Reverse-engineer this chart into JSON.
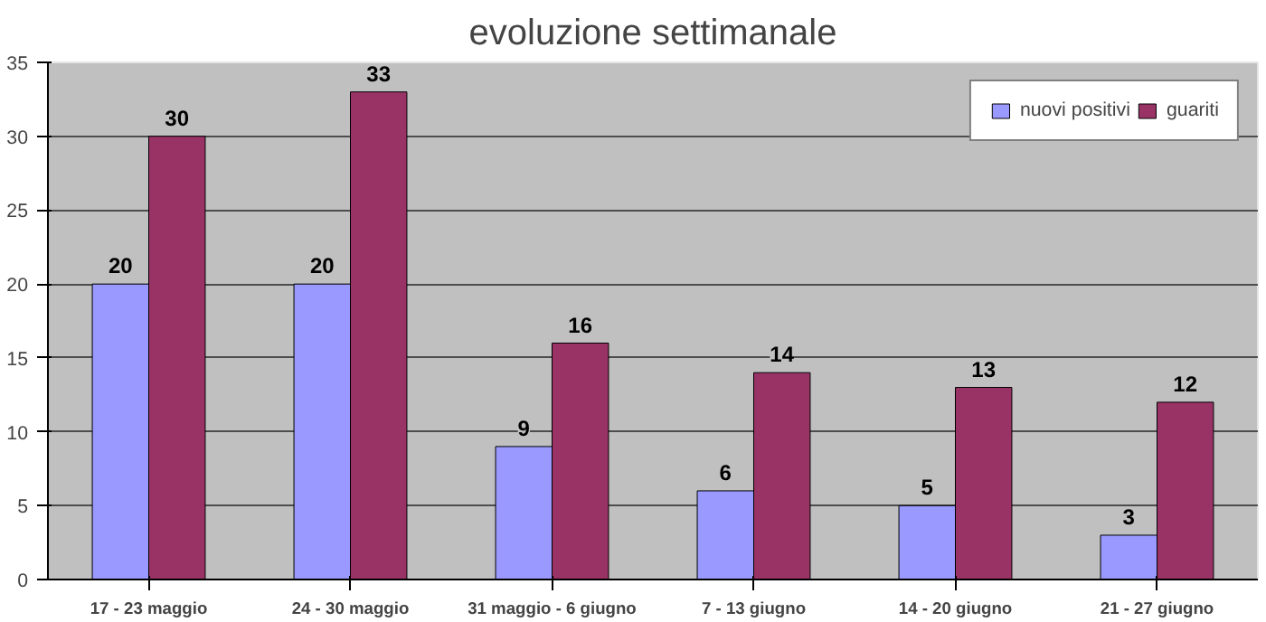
{
  "chart_data": {
    "type": "bar",
    "title": "evoluzione settimanale",
    "categories": [
      "17 - 23 maggio",
      "24 - 30 maggio",
      "31 maggio - 6 giugno",
      "7 - 13 giugno",
      "14 - 20 giugno",
      "21 - 27 giugno"
    ],
    "series": [
      {
        "name": "nuovi positivi",
        "color": "#9999ff",
        "values": [
          20,
          20,
          9,
          6,
          5,
          3
        ]
      },
      {
        "name": "guariti",
        "color": "#993366",
        "values": [
          30,
          33,
          16,
          14,
          13,
          12
        ]
      }
    ],
    "ylim": [
      0,
      35
    ],
    "yticks": [
      0,
      5,
      10,
      15,
      20,
      25,
      30,
      35
    ],
    "grid": "y",
    "legend": "top right",
    "data_labels": true
  }
}
